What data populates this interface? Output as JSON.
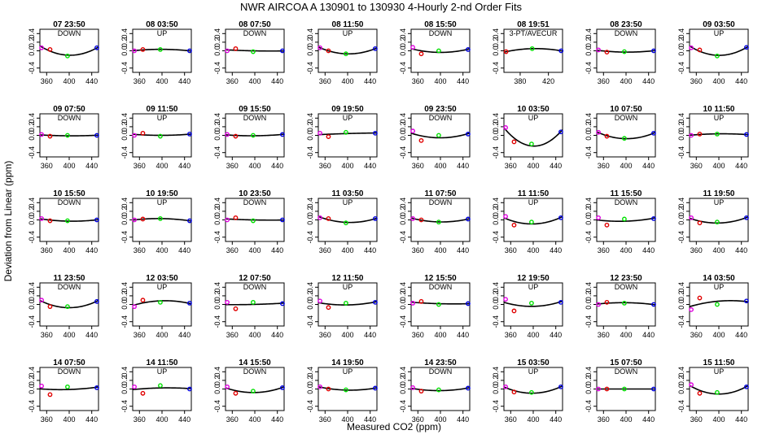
{
  "figure": {
    "title": "NWR   AIRCOA A   130901 to 130930   4-Hourly 2-nd Order Fits",
    "xlabel": "Measured CO2 (ppm)",
    "ylabel": "Deviation from Linear (ppm)",
    "colors": {
      "std1": "#e000e0",
      "std2": "#e00000",
      "std3": "#00e000",
      "std4": "#0000e0",
      "curve": "#000000"
    }
  },
  "chart_data": {
    "type": "scatter",
    "grid": false,
    "standards_x": [
      351,
      366,
      397,
      449
    ],
    "xlim": [
      348,
      452
    ],
    "ylim": [
      -0.5,
      0.5
    ],
    "xticks": [
      360,
      400,
      440
    ],
    "yticks": [
      -0.4,
      0.0,
      0.2,
      0.4
    ],
    "ytick_labels": [
      "-0.4",
      "0.0",
      "0.2",
      "0.4"
    ],
    "panels": [
      {
        "title": "07 23:50",
        "label": "DOWN",
        "y": [
          0.07,
          0.03,
          -0.12,
          0.07
        ]
      },
      {
        "title": "08 03:50",
        "label": "UP",
        "y": [
          0.0,
          0.03,
          0.03,
          0.0
        ]
      },
      {
        "title": "08 07:50",
        "label": "DOWN",
        "y": [
          0.0,
          0.05,
          -0.02,
          0.0
        ]
      },
      {
        "title": "08 11:50",
        "label": "UP",
        "y": [
          0.07,
          0.0,
          -0.07,
          0.05
        ]
      },
      {
        "title": "08 15:50",
        "label": "DOWN",
        "y": [
          0.08,
          -0.07,
          0.0,
          0.03
        ]
      },
      {
        "title": "08 19:51",
        "label": "3-PT/AVECUR",
        "xticks": [
          380,
          420
        ],
        "y": [
          null,
          -0.02,
          0.05,
          0.0
        ],
        "x": [
          null,
          360,
          397,
          438
        ],
        "xlim": [
          357,
          440
        ]
      },
      {
        "title": "08 23:50",
        "label": "DOWN",
        "y": [
          0.02,
          -0.03,
          -0.02,
          0.0
        ]
      },
      {
        "title": "09 03:50",
        "label": "UP",
        "y": [
          0.07,
          0.02,
          -0.12,
          0.08
        ]
      },
      {
        "title": "09 07:50",
        "label": "DOWN",
        "y": [
          0.02,
          -0.02,
          0.0,
          0.0
        ]
      },
      {
        "title": "09 11:50",
        "label": "UP",
        "y": [
          0.0,
          0.05,
          -0.02,
          0.03
        ]
      },
      {
        "title": "09 15:50",
        "label": "DOWN",
        "y": [
          0.02,
          -0.02,
          0.0,
          0.02
        ]
      },
      {
        "title": "09 19:50",
        "label": "UP",
        "y": [
          0.05,
          -0.03,
          0.07,
          0.05
        ]
      },
      {
        "title": "09 23:50",
        "label": "DOWN",
        "y": [
          0.1,
          -0.12,
          0.0,
          0.03
        ]
      },
      {
        "title": "10 03:50",
        "label": "UP",
        "y": [
          0.18,
          -0.15,
          -0.2,
          0.08
        ]
      },
      {
        "title": "10 07:50",
        "label": "DOWN",
        "y": [
          0.07,
          -0.02,
          -0.07,
          0.05
        ]
      },
      {
        "title": "10 11:50",
        "label": "UP",
        "y": [
          0.0,
          0.03,
          0.03,
          0.02
        ]
      },
      {
        "title": "10 15:50",
        "label": "DOWN",
        "y": [
          0.03,
          -0.02,
          -0.02,
          0.0
        ]
      },
      {
        "title": "10 19:50",
        "label": "UP",
        "y": [
          0.0,
          0.02,
          0.03,
          -0.02
        ]
      },
      {
        "title": "10 23:50",
        "label": "DOWN",
        "y": [
          0.0,
          0.05,
          -0.02,
          0.0
        ]
      },
      {
        "title": "11 03:50",
        "label": "UP",
        "y": [
          0.05,
          0.03,
          -0.07,
          0.03
        ]
      },
      {
        "title": "11 07:50",
        "label": "DOWN",
        "y": [
          0.03,
          0.0,
          -0.05,
          0.02
        ]
      },
      {
        "title": "11 11:50",
        "label": "UP",
        "y": [
          0.08,
          -0.12,
          -0.05,
          0.05
        ]
      },
      {
        "title": "11 15:50",
        "label": "DOWN",
        "y": [
          0.05,
          -0.12,
          0.02,
          0.03
        ]
      },
      {
        "title": "11 19:50",
        "label": "UP",
        "y": [
          0.05,
          -0.07,
          -0.05,
          0.05
        ]
      },
      {
        "title": "11 23:50",
        "label": "DOWN",
        "y": [
          0.1,
          -0.05,
          -0.05,
          0.07
        ]
      },
      {
        "title": "12 03:50",
        "label": "UP",
        "y": [
          -0.05,
          0.1,
          0.05,
          0.03
        ]
      },
      {
        "title": "12 07:50",
        "label": "DOWN",
        "y": [
          0.05,
          -0.1,
          0.05,
          0.02
        ]
      },
      {
        "title": "12 11:50",
        "label": "UP",
        "y": [
          0.08,
          -0.07,
          0.03,
          0.05
        ]
      },
      {
        "title": "12 15:50",
        "label": "DOWN",
        "y": [
          0.03,
          0.07,
          0.0,
          0.02
        ]
      },
      {
        "title": "12 19:50",
        "label": "UP",
        "y": [
          0.12,
          -0.15,
          0.03,
          0.05
        ]
      },
      {
        "title": "12 23:50",
        "label": "DOWN",
        "y": [
          0.0,
          0.05,
          0.03,
          0.0
        ]
      },
      {
        "title": "14 03:50",
        "label": "UP",
        "y": [
          -0.12,
          0.15,
          0.0,
          0.08
        ]
      },
      {
        "title": "14 07:50",
        "label": "DOWN",
        "y": [
          0.07,
          -0.13,
          0.05,
          0.03
        ]
      },
      {
        "title": "14 11:50",
        "label": "UP",
        "y": [
          0.05,
          -0.1,
          0.08,
          0.0
        ]
      },
      {
        "title": "14 15:50",
        "label": "DOWN",
        "y": [
          0.05,
          -0.1,
          -0.05,
          0.03
        ]
      },
      {
        "title": "14 19:50",
        "label": "UP",
        "y": [
          0.05,
          0.0,
          -0.02,
          0.02
        ]
      },
      {
        "title": "14 23:50",
        "label": "DOWN",
        "y": [
          0.03,
          -0.05,
          -0.02,
          0.02
        ]
      },
      {
        "title": "15 03:50",
        "label": "UP",
        "y": [
          0.05,
          -0.07,
          -0.08,
          0.05
        ]
      },
      {
        "title": "15 07:50",
        "label": "DOWN",
        "y": [
          0.0,
          0.0,
          0.0,
          0.0
        ]
      },
      {
        "title": "15 11:50",
        "label": "UP",
        "y": [
          0.1,
          -0.1,
          -0.08,
          0.05
        ]
      }
    ]
  }
}
